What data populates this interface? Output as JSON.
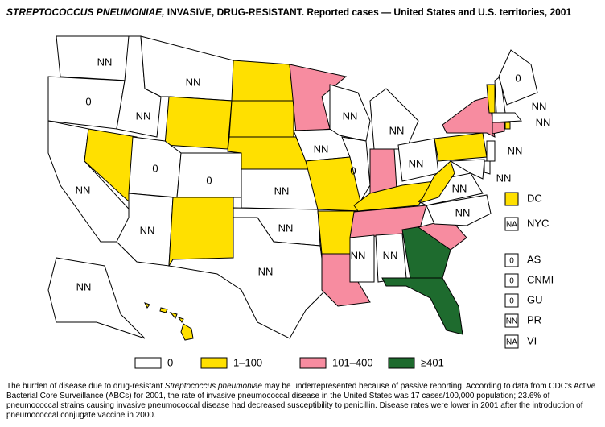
{
  "title": {
    "italic": "STREPTOCOCCUS PNEUMONIAE,",
    "rest": " INVASIVE, DRUG-RESISTANT. Reported cases — United States and U.S. territories, 2001"
  },
  "legend": [
    {
      "label": "0",
      "color": "#ffffff"
    },
    {
      "label": "1–100",
      "color": "#ffe000"
    },
    {
      "label": "101–400",
      "color": "#f78ca0"
    },
    {
      "label": "≥401",
      "color": "#1e6b2e"
    }
  ],
  "states": [
    {
      "label": "NN",
      "color": "#ffffff"
    },
    {
      "label": "0",
      "color": "#ffffff"
    },
    {
      "label": "NN",
      "color": "#ffffff"
    },
    {
      "label": null,
      "color": "#ffe000"
    },
    {
      "label": "NN",
      "color": "#ffffff"
    },
    {
      "label": "NN",
      "color": "#ffffff"
    },
    {
      "label": null,
      "color": "#ffe000"
    },
    {
      "label": "0",
      "color": "#ffffff"
    },
    {
      "label": "0",
      "color": "#ffffff"
    },
    {
      "label": "NN",
      "color": "#ffffff"
    },
    {
      "label": null,
      "color": "#ffe000"
    },
    {
      "label": null,
      "color": "#ffe000"
    },
    {
      "label": null,
      "color": "#ffe000"
    },
    {
      "label": null,
      "color": "#ffe000"
    },
    {
      "label": "NN",
      "color": "#ffffff"
    },
    {
      "label": "NN",
      "color": "#ffffff"
    },
    {
      "label": "NN",
      "color": "#ffffff"
    },
    {
      "label": null,
      "color": "#f78ca0"
    },
    {
      "label": "NN",
      "color": "#ffffff"
    },
    {
      "label": null,
      "color": "#ffe000"
    },
    {
      "label": null,
      "color": "#ffe000"
    },
    {
      "label": null,
      "color": "#f78ca0"
    },
    {
      "label": "NN",
      "color": "#ffffff"
    },
    {
      "label": "0",
      "color": "#ffffff"
    },
    {
      "label": "NN",
      "color": "#ffffff"
    },
    {
      "label": null,
      "color": "#f78ca0"
    },
    {
      "label": "NN",
      "color": "#ffffff"
    },
    {
      "label": null,
      "color": "#ffe000"
    },
    {
      "label": null,
      "color": "#f78ca0"
    },
    {
      "label": "NN",
      "color": "#ffffff"
    },
    {
      "label": "NN",
      "color": "#ffffff"
    },
    {
      "label": null,
      "color": "#1e6b2e"
    },
    {
      "label": null,
      "color": "#1e6b2e"
    },
    {
      "label": null,
      "color": "#f78ca0"
    },
    {
      "label": "NN",
      "color": "#ffffff"
    },
    {
      "label": "NN",
      "color": "#ffffff"
    },
    {
      "label": null,
      "color": "#ffe000"
    },
    {
      "label": null,
      "color": "#ffe000"
    },
    {
      "label": null,
      "color": "#f78ca0"
    },
    {
      "label": null,
      "color": "#ffe000"
    },
    {
      "label": "NN",
      "color": "#ffffff"
    },
    {
      "label": "0",
      "color": "#ffffff"
    },
    {
      "label": "NN",
      "color": "#ffffff"
    },
    {
      "label": null,
      "color": "#f78ca0"
    },
    {
      "label": null,
      "color": "#ffe000"
    },
    {
      "label": "NN",
      "color": "#ffffff"
    },
    {
      "label": "NN",
      "color": "#ffffff"
    },
    {
      "label": null,
      "color": "#ffffff"
    },
    {
      "label": "NN",
      "color": "#ffffff"
    },
    {
      "label": null,
      "color": "#ffe000"
    }
  ],
  "territories": [
    {
      "name": "DC",
      "label": null,
      "color": "#ffe000"
    },
    {
      "name": "NYC",
      "label": "NA",
      "color": "#ffffff"
    },
    {
      "name": "AS",
      "label": "0",
      "color": "#ffffff"
    },
    {
      "name": "CNMI",
      "label": "0",
      "color": "#ffffff"
    },
    {
      "name": "GU",
      "label": "0",
      "color": "#ffffff"
    },
    {
      "name": "PR",
      "label": "NN",
      "color": "#ffffff"
    },
    {
      "name": "VI",
      "label": "NA",
      "color": "#ffffff"
    }
  ],
  "footnote": [
    "The burden of disease due to drug-resistant ",
    "Streptococcus pneumoniae",
    " may be underrepresented because of passive reporting. According to data from CDC's Active Bacterial Core Surveillance (ABCs) for 2001, the rate of invasive pneumococcal disease in the United States was 17 cases/100,000 population; 23.6% of pneumococcal strains causing invasive pneumococcal disease had decreased susceptibility to penicillin. Disease rates were lower in 2001 after the introduction of pneumococcal conjugate vaccine in 2000."
  ]
}
